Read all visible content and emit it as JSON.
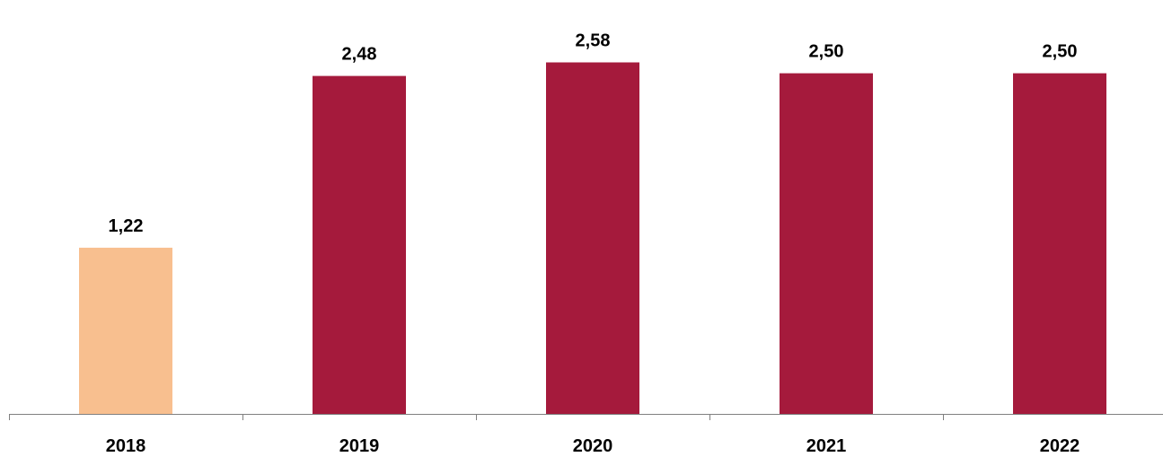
{
  "chart_data": {
    "type": "bar",
    "title": "",
    "xlabel": "",
    "ylabel": "",
    "categories": [
      "2018",
      "2019",
      "2020",
      "2021",
      "2022"
    ],
    "values": [
      1.22,
      2.48,
      2.58,
      2.5,
      2.5
    ],
    "value_labels": [
      "1,22",
      "2,48",
      "2,58",
      "2,50",
      "2,50"
    ],
    "bar_colors": [
      "#F8BF8F",
      "#A51A3C",
      "#A51A3C",
      "#A51A3C",
      "#A51A3C"
    ],
    "ylim": [
      0,
      2.84
    ],
    "grid": false,
    "legend": "none",
    "axis_color": "#808080"
  }
}
